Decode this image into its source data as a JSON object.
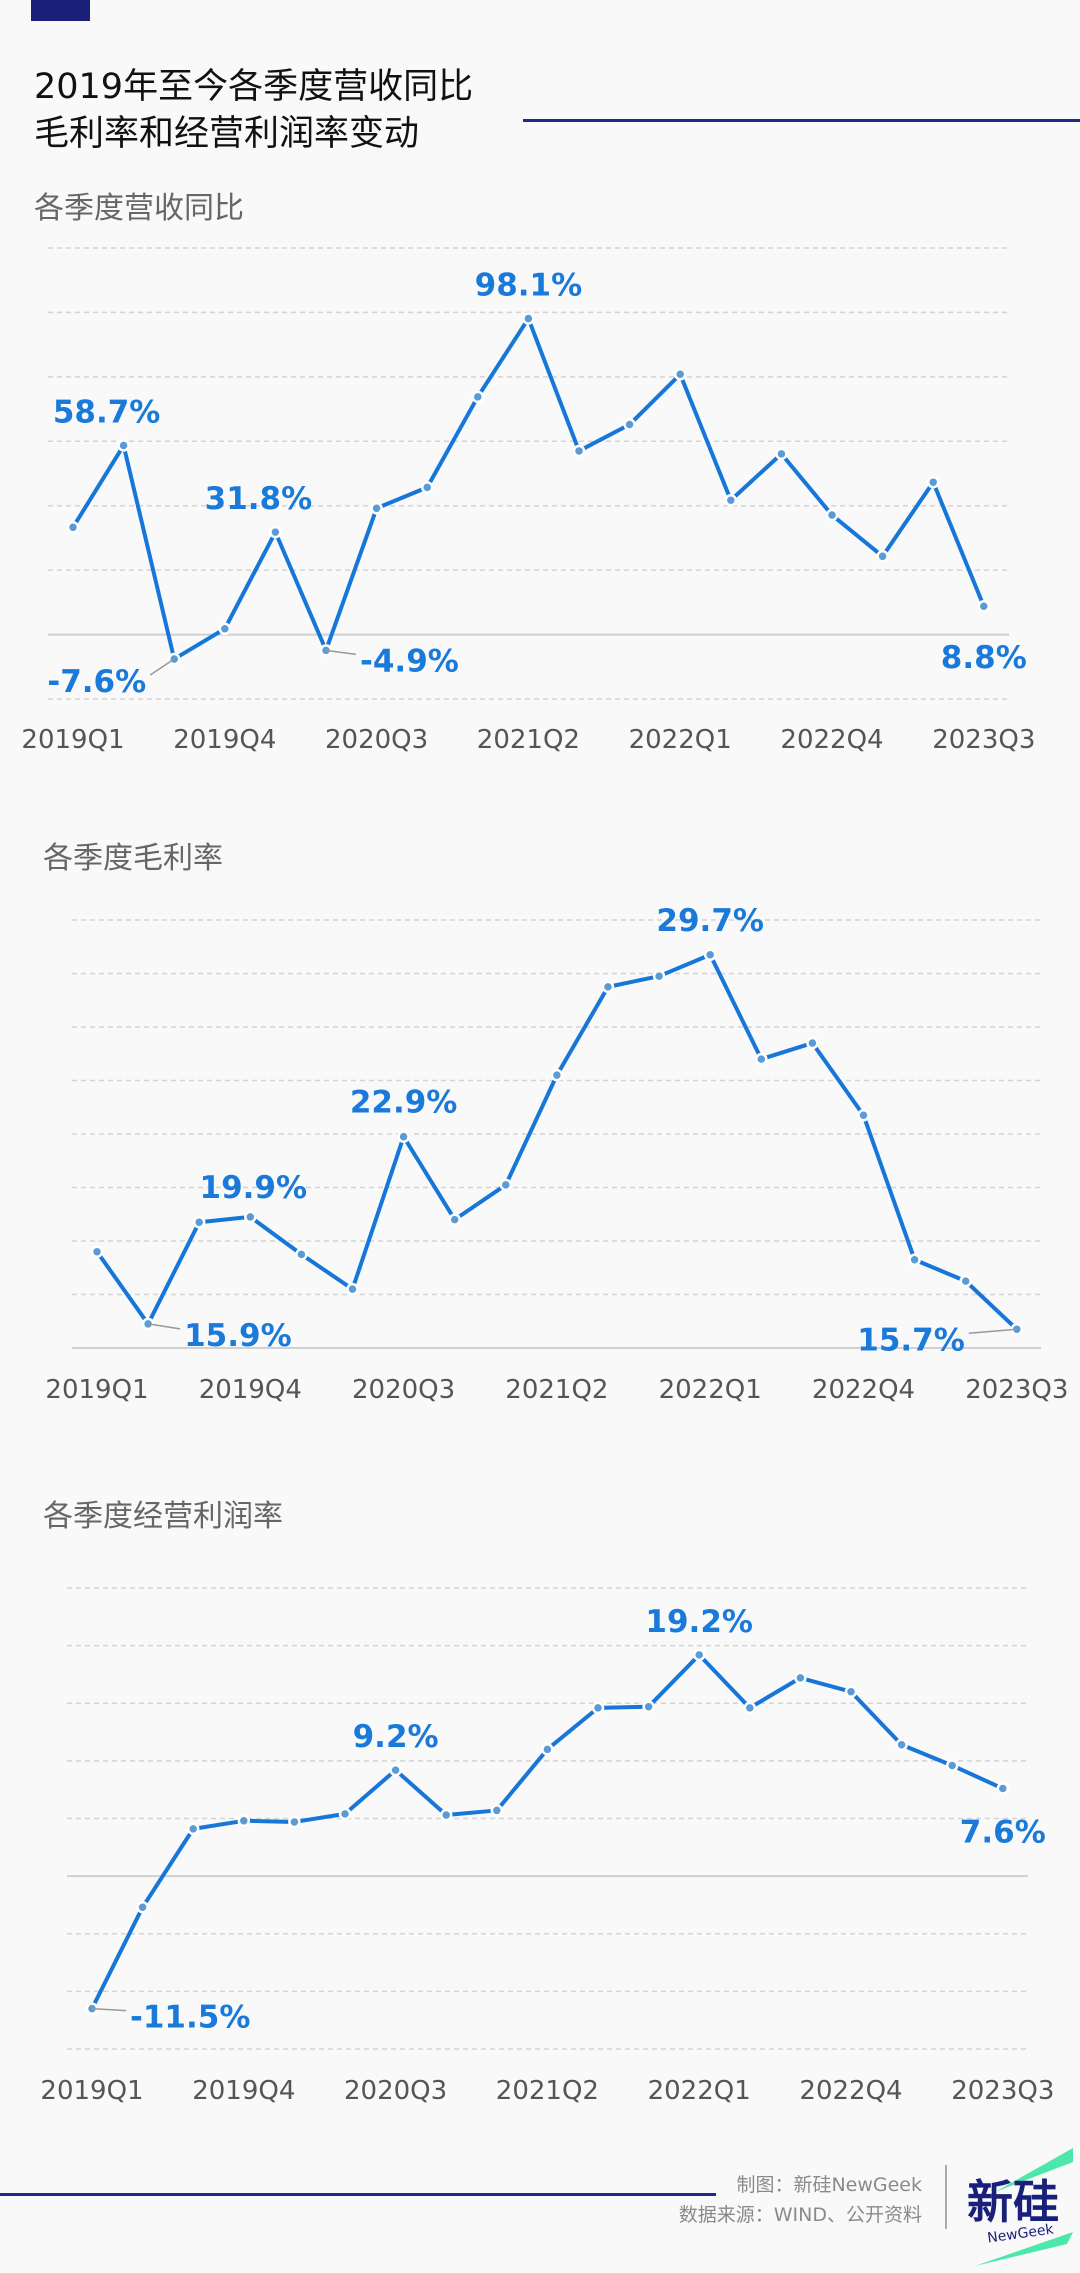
{
  "header": {
    "title_line1": "2019年至今各季度营收同比",
    "title_line2": "毛利率和经营利润率变动"
  },
  "colors": {
    "line": "#1677d8",
    "label": "#1a7ad9",
    "dot": "#5b9bd5",
    "grid": "#d4d4d4",
    "axis_text": "#555555",
    "brand_navy": "#1a1f7a",
    "brand_green": "#2ee59d"
  },
  "chart_data": [
    {
      "type": "line",
      "title": "各季度营收同比",
      "xlabel": "",
      "ylabel": "",
      "ylim": [
        -20,
        120
      ],
      "grid": true,
      "yticks": [
        -20,
        0,
        20,
        40,
        60,
        80,
        100,
        120
      ],
      "categories": [
        "2019Q1",
        "2019Q2",
        "2019Q3",
        "2019Q4",
        "2020Q1",
        "2020Q2",
        "2020Q3",
        "2020Q4",
        "2021Q1",
        "2021Q2",
        "2021Q3",
        "2021Q4",
        "2022Q1",
        "2022Q2",
        "2022Q3",
        "2022Q4",
        "2023Q1",
        "2023Q2",
        "2023Q3"
      ],
      "x_tick_labels": [
        "2019Q1",
        "2019Q4",
        "2020Q3",
        "2021Q2",
        "2022Q1",
        "2022Q4",
        "2023Q3"
      ],
      "series": [
        {
          "name": "营收同比(%)",
          "values": [
            33.3,
            58.7,
            -7.6,
            1.8,
            31.8,
            -4.9,
            39.2,
            45.7,
            73.8,
            98.1,
            57.0,
            65.2,
            80.8,
            41.7,
            56.1,
            37.1,
            24.3,
            47.3,
            8.8
          ]
        }
      ],
      "annotations": [
        {
          "index": 1,
          "text": "58.7%"
        },
        {
          "index": 2,
          "text": "-7.6%"
        },
        {
          "index": 4,
          "text": "31.8%"
        },
        {
          "index": 5,
          "text": "-4.9%"
        },
        {
          "index": 9,
          "text": "98.1%"
        },
        {
          "index": 18,
          "text": "8.8%"
        }
      ]
    },
    {
      "type": "line",
      "title": "各季度毛利率",
      "xlabel": "",
      "ylabel": "",
      "ylim": [
        15,
        31
      ],
      "grid": true,
      "yticks": [
        15,
        17,
        19,
        21,
        23,
        25,
        27,
        29,
        31
      ],
      "categories": [
        "2019Q1",
        "2019Q2",
        "2019Q3",
        "2019Q4",
        "2020Q1",
        "2020Q2",
        "2020Q3",
        "2020Q4",
        "2021Q1",
        "2021Q2",
        "2021Q3",
        "2021Q4",
        "2022Q1",
        "2022Q2",
        "2022Q3",
        "2022Q4",
        "2023Q1",
        "2023Q2",
        "2023Q3"
      ],
      "x_tick_labels": [
        "2019Q1",
        "2019Q4",
        "2020Q3",
        "2021Q2",
        "2022Q1",
        "2022Q4",
        "2023Q3"
      ],
      "series": [
        {
          "name": "毛利率(%)",
          "values": [
            18.6,
            15.9,
            19.7,
            19.9,
            18.5,
            17.2,
            22.9,
            19.8,
            21.1,
            25.2,
            28.5,
            28.9,
            29.7,
            25.8,
            26.4,
            23.7,
            18.3,
            17.5,
            15.7
          ]
        }
      ],
      "annotations": [
        {
          "index": 1,
          "text": "15.9%"
        },
        {
          "index": 3,
          "text": "19.9%"
        },
        {
          "index": 6,
          "text": "22.9%"
        },
        {
          "index": 12,
          "text": "29.7%"
        },
        {
          "index": 18,
          "text": "15.7%"
        }
      ]
    },
    {
      "type": "line",
      "title": "各季度经营利润率",
      "xlabel": "",
      "ylabel": "",
      "ylim": [
        -15,
        25
      ],
      "grid": true,
      "yticks": [
        -15,
        -10,
        -5,
        0,
        5,
        10,
        15,
        20,
        25
      ],
      "categories": [
        "2019Q1",
        "2019Q2",
        "2019Q3",
        "2019Q4",
        "2020Q1",
        "2020Q2",
        "2020Q3",
        "2020Q4",
        "2021Q1",
        "2021Q2",
        "2021Q3",
        "2021Q4",
        "2022Q1",
        "2022Q2",
        "2022Q3",
        "2022Q4",
        "2023Q1",
        "2023Q2",
        "2023Q3"
      ],
      "x_tick_labels": [
        "2019Q1",
        "2019Q4",
        "2020Q3",
        "2021Q2",
        "2022Q1",
        "2022Q4",
        "2023Q3"
      ],
      "series": [
        {
          "name": "经营利润率(%)",
          "values": [
            -11.5,
            -2.7,
            4.1,
            4.8,
            4.7,
            5.4,
            9.2,
            5.3,
            5.7,
            11.0,
            14.6,
            14.7,
            19.2,
            14.6,
            17.2,
            16.0,
            11.4,
            9.6,
            7.6
          ]
        }
      ],
      "annotations": [
        {
          "index": 0,
          "text": "-11.5%"
        },
        {
          "index": 6,
          "text": "9.2%"
        },
        {
          "index": 12,
          "text": "19.2%"
        },
        {
          "index": 18,
          "text": "7.6%"
        }
      ]
    }
  ],
  "footer": {
    "credit": "制图：新硅NewGeek",
    "source": "数据来源：WIND、公开资料",
    "logo_text": "新硅",
    "logo_sub": "NewGeek"
  }
}
